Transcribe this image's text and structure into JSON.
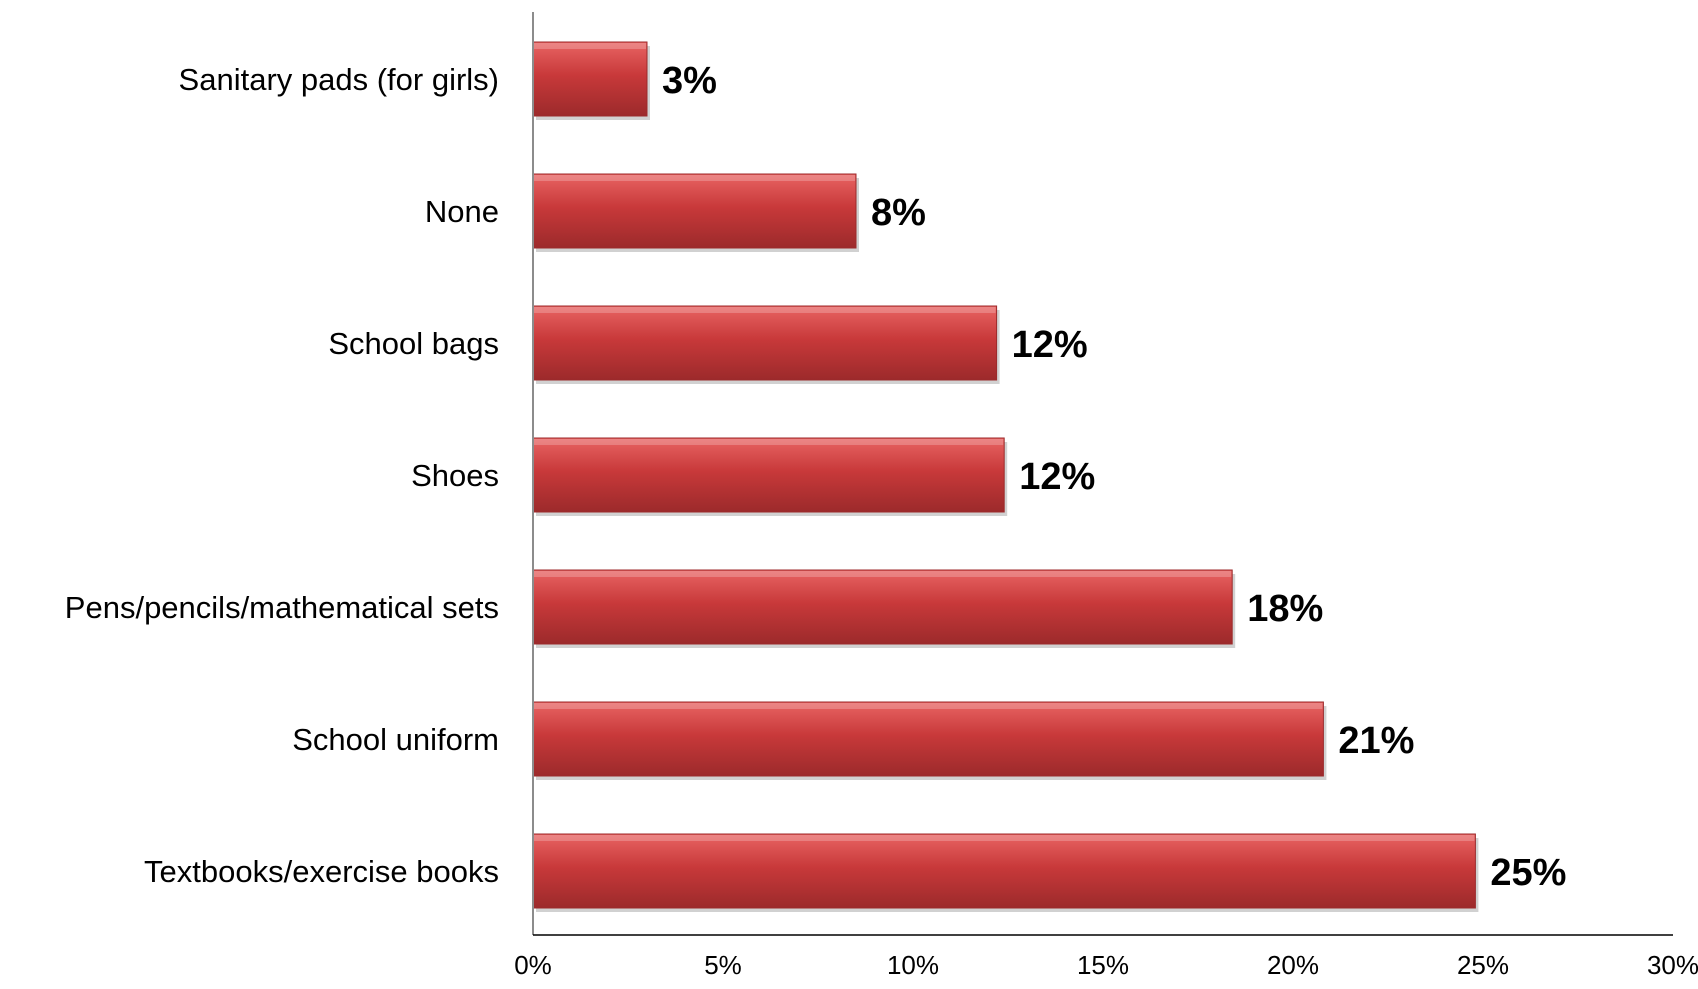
{
  "chart_data": {
    "type": "bar",
    "orientation": "horizontal",
    "categories": [
      "Sanitary pads (for girls)",
      "None",
      "School bags",
      "Shoes",
      "Pens/pencils/mathematical sets",
      "School uniform",
      "Textbooks/exercise books"
    ],
    "values": [
      3,
      8.5,
      12.2,
      12.4,
      18.4,
      20.8,
      24.8
    ],
    "data_labels": [
      "3%",
      "8%",
      "12%",
      "12%",
      "18%",
      "21%",
      "25%"
    ],
    "xlim": [
      0,
      30
    ],
    "xticks": [
      0,
      5,
      10,
      15,
      20,
      25,
      30
    ],
    "xtick_labels": [
      "0%",
      "5%",
      "10%",
      "15%",
      "20%",
      "25%",
      "30%"
    ],
    "title": "",
    "xlabel": "",
    "ylabel": "",
    "grid": false,
    "legend": "none",
    "bar_color": "#c8393a",
    "bar_highlight_color": "#e86463",
    "bar_shadow_color": "#9c2a2b"
  }
}
